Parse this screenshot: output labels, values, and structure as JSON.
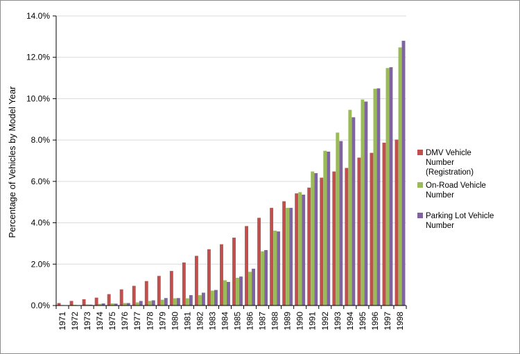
{
  "chart_data": {
    "type": "bar",
    "ylabel": "Percentage of Vehicles by Model Year",
    "xlabel": "",
    "ylim": [
      0,
      14
    ],
    "y_ticks": [
      0,
      2,
      4,
      6,
      8,
      10,
      12,
      14
    ],
    "y_tick_labels": [
      "0.0%",
      "2.0%",
      "4.0%",
      "6.0%",
      "8.0%",
      "10.0%",
      "12.0%",
      "14.0%"
    ],
    "grid": "horizontal",
    "legend_position": "right",
    "categories": [
      "1971",
      "1972",
      "1973",
      "1974",
      "1975",
      "1976",
      "1977",
      "1978",
      "1979",
      "1980",
      "1981",
      "1982",
      "1983",
      "1984",
      "1985",
      "1986",
      "1987",
      "1988",
      "1989",
      "1990",
      "1991",
      "1992",
      "1993",
      "1994",
      "1995",
      "1996",
      "1997",
      "1998"
    ],
    "series": [
      {
        "name": "DMV Vehicle Number (Registration)",
        "legend_lines": [
          "DMV Vehicle",
          "Number",
          "(Registration)"
        ],
        "color": "#c0504d",
        "values": [
          0.12,
          0.22,
          0.3,
          0.38,
          0.55,
          0.78,
          0.95,
          1.18,
          1.43,
          1.67,
          2.08,
          2.4,
          2.72,
          2.96,
          3.28,
          3.84,
          4.24,
          4.72,
          5.04,
          5.42,
          5.7,
          6.18,
          6.48,
          6.65,
          7.15,
          7.38,
          7.87,
          8.02
        ]
      },
      {
        "name": "On-Road Vehicle Number",
        "legend_lines": [
          "On-Road Vehicle",
          "Number"
        ],
        "color": "#9bbb59",
        "values": [
          0.02,
          0.03,
          0.05,
          0.08,
          0.1,
          0.12,
          0.15,
          0.22,
          0.28,
          0.35,
          0.35,
          0.5,
          0.72,
          1.22,
          1.34,
          1.63,
          2.62,
          3.62,
          4.72,
          5.48,
          6.48,
          7.48,
          8.36,
          9.46,
          9.96,
          10.48,
          11.48,
          12.48
        ]
      },
      {
        "name": "Parking Lot Vehicle Number",
        "legend_lines": [
          "Parking Lot Vehicle",
          "Number"
        ],
        "color": "#8064a2",
        "values": [
          0.01,
          0.02,
          0.04,
          0.1,
          0.09,
          0.12,
          0.22,
          0.25,
          0.36,
          0.36,
          0.5,
          0.62,
          0.75,
          1.14,
          1.4,
          1.78,
          2.68,
          3.58,
          4.72,
          5.36,
          6.4,
          7.44,
          7.95,
          9.1,
          9.86,
          10.5,
          11.52,
          12.8
        ]
      }
    ]
  }
}
